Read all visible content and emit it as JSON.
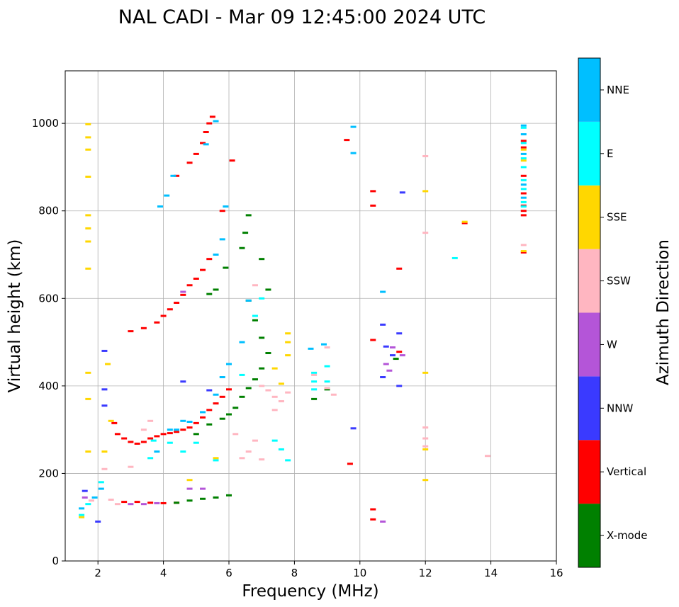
{
  "chart_data": {
    "type": "scatter",
    "title": "NAL CADI - Mar 09 12:45:00 2024 UTC",
    "xlabel": "Frequency (MHz)",
    "ylabel": "Virtual height (km)",
    "xlim": [
      1,
      16
    ],
    "ylim": [
      0,
      1120
    ],
    "xticks": [
      2,
      4,
      6,
      8,
      10,
      12,
      14,
      16
    ],
    "yticks": [
      0,
      200,
      400,
      600,
      800,
      1000
    ],
    "grid": true,
    "colorbar": {
      "label": "Azimuth Direction",
      "categories": [
        {
          "name": "X-mode",
          "color": "#008000"
        },
        {
          "name": "Vertical",
          "color": "#ff0000"
        },
        {
          "name": "NNW",
          "color": "#3a3aff"
        },
        {
          "name": "W",
          "color": "#b455d8"
        },
        {
          "name": "SSW",
          "color": "#ffb6c1"
        },
        {
          "name": "SSE",
          "color": "#ffd700"
        },
        {
          "name": "E",
          "color": "#00ffff"
        },
        {
          "name": "NNE",
          "color": "#00bfff"
        }
      ]
    },
    "series": [
      {
        "name": "Vertical",
        "points": [
          [
            2.5,
            315
          ],
          [
            2.6,
            290
          ],
          [
            2.8,
            280
          ],
          [
            3.0,
            272
          ],
          [
            3.2,
            268
          ],
          [
            3.4,
            272
          ],
          [
            3.6,
            280
          ],
          [
            3.8,
            285
          ],
          [
            4.0,
            290
          ],
          [
            4.2,
            292
          ],
          [
            4.4,
            295
          ],
          [
            4.6,
            300
          ],
          [
            4.8,
            305
          ],
          [
            5.0,
            315
          ],
          [
            5.2,
            328
          ],
          [
            5.4,
            345
          ],
          [
            5.6,
            360
          ],
          [
            5.8,
            375
          ],
          [
            6.0,
            392
          ],
          [
            2.8,
            135
          ],
          [
            3.2,
            135
          ],
          [
            3.6,
            133
          ],
          [
            4.0,
            132
          ],
          [
            4.4,
            133
          ],
          [
            3.0,
            525
          ],
          [
            3.4,
            532
          ],
          [
            3.8,
            545
          ],
          [
            4.0,
            560
          ],
          [
            4.2,
            575
          ],
          [
            4.4,
            590
          ],
          [
            4.6,
            608
          ],
          [
            4.8,
            630
          ],
          [
            5.0,
            645
          ],
          [
            5.2,
            665
          ],
          [
            5.4,
            690
          ],
          [
            4.4,
            880
          ],
          [
            4.8,
            910
          ],
          [
            5.0,
            930
          ],
          [
            5.2,
            955
          ],
          [
            5.3,
            980
          ],
          [
            5.4,
            1000
          ],
          [
            5.5,
            1015
          ],
          [
            5.8,
            800
          ],
          [
            6.1,
            915
          ],
          [
            9.6,
            962
          ],
          [
            9.7,
            222
          ],
          [
            10.4,
            845
          ],
          [
            10.4,
            812
          ],
          [
            10.4,
            505
          ],
          [
            10.4,
            118
          ],
          [
            10.4,
            95
          ],
          [
            11.2,
            668
          ],
          [
            11.2,
            478
          ],
          [
            15.0,
            960
          ],
          [
            15.0,
            945
          ],
          [
            15.0,
            880
          ],
          [
            15.0,
            840
          ],
          [
            15.0,
            812
          ],
          [
            15.0,
            800
          ],
          [
            15.0,
            790
          ],
          [
            15.0,
            705
          ],
          [
            13.2,
            772
          ]
        ]
      },
      {
        "name": "X-mode",
        "points": [
          [
            5.0,
            290
          ],
          [
            5.4,
            312
          ],
          [
            5.8,
            325
          ],
          [
            6.0,
            335
          ],
          [
            6.2,
            350
          ],
          [
            6.4,
            375
          ],
          [
            6.6,
            395
          ],
          [
            6.8,
            415
          ],
          [
            7.0,
            440
          ],
          [
            7.2,
            475
          ],
          [
            4.4,
            133
          ],
          [
            4.8,
            138
          ],
          [
            5.2,
            142
          ],
          [
            5.6,
            145
          ],
          [
            6.0,
            150
          ],
          [
            6.6,
            790
          ],
          [
            6.5,
            750
          ],
          [
            6.4,
            715
          ],
          [
            5.9,
            670
          ],
          [
            5.6,
            620
          ],
          [
            5.4,
            610
          ],
          [
            7.0,
            690
          ],
          [
            7.2,
            620
          ],
          [
            6.6,
            595
          ],
          [
            6.8,
            550
          ],
          [
            7.0,
            510
          ],
          [
            8.6,
            370
          ],
          [
            9.0,
            392
          ],
          [
            11.1,
            462
          ]
        ]
      },
      {
        "name": "NNE",
        "points": [
          [
            4.4,
            300
          ],
          [
            4.8,
            318
          ],
          [
            5.2,
            340
          ],
          [
            5.6,
            380
          ],
          [
            5.8,
            420
          ],
          [
            6.0,
            450
          ],
          [
            6.4,
            500
          ],
          [
            6.6,
            595
          ],
          [
            5.6,
            700
          ],
          [
            5.8,
            735
          ],
          [
            5.9,
            810
          ],
          [
            5.6,
            1005
          ],
          [
            5.3,
            952
          ],
          [
            4.3,
            880
          ],
          [
            4.1,
            835
          ],
          [
            3.9,
            810
          ],
          [
            3.8,
            250
          ],
          [
            4.2,
            300
          ],
          [
            4.6,
            320
          ],
          [
            8.5,
            485
          ],
          [
            8.9,
            495
          ],
          [
            9.8,
            992
          ],
          [
            9.8,
            932
          ],
          [
            10.7,
            615
          ],
          [
            15.0,
            995
          ],
          [
            15.0,
            975
          ],
          [
            15.0,
            930
          ],
          [
            15.0,
            860
          ],
          [
            15.0,
            830
          ],
          [
            1.5,
            120
          ],
          [
            1.9,
            145
          ],
          [
            2.1,
            165
          ]
        ]
      },
      {
        "name": "E",
        "points": [
          [
            3.6,
            235
          ],
          [
            3.7,
            275
          ],
          [
            4.2,
            270
          ],
          [
            4.6,
            250
          ],
          [
            5.0,
            270
          ],
          [
            5.6,
            230
          ],
          [
            7.4,
            275
          ],
          [
            7.6,
            255
          ],
          [
            7.8,
            230
          ],
          [
            8.6,
            430
          ],
          [
            8.6,
            410
          ],
          [
            8.6,
            392
          ],
          [
            9.0,
            445
          ],
          [
            9.0,
            410
          ],
          [
            12.9,
            692
          ],
          [
            15.0,
            990
          ],
          [
            15.0,
            955
          ],
          [
            15.0,
            920
          ],
          [
            15.0,
            900
          ],
          [
            15.0,
            870
          ],
          [
            15.0,
            850
          ],
          [
            15.0,
            820
          ],
          [
            15.0,
            810
          ],
          [
            6.4,
            425
          ],
          [
            6.8,
            560
          ],
          [
            7.0,
            600
          ],
          [
            1.5,
            105
          ],
          [
            1.7,
            130
          ],
          [
            2.1,
            180
          ]
        ]
      },
      {
        "name": "NNW",
        "points": [
          [
            2.2,
            480
          ],
          [
            2.2,
            392
          ],
          [
            2.2,
            355
          ],
          [
            4.6,
            410
          ],
          [
            5.4,
            390
          ],
          [
            9.8,
            303
          ],
          [
            10.7,
            540
          ],
          [
            10.8,
            490
          ],
          [
            11.0,
            470
          ],
          [
            11.2,
            520
          ],
          [
            11.2,
            400
          ],
          [
            10.7,
            420
          ],
          [
            11.3,
            842
          ],
          [
            1.6,
            160
          ],
          [
            2.0,
            90
          ]
        ]
      },
      {
        "name": "W",
        "points": [
          [
            3.0,
            130
          ],
          [
            3.4,
            130
          ],
          [
            3.8,
            132
          ],
          [
            4.8,
            165
          ],
          [
            5.2,
            165
          ],
          [
            4.6,
            615
          ],
          [
            10.8,
            450
          ],
          [
            10.9,
            435
          ],
          [
            11.0,
            488
          ],
          [
            10.7,
            90
          ],
          [
            11.3,
            470
          ],
          [
            1.6,
            145
          ]
        ]
      },
      {
        "name": "SSW",
        "points": [
          [
            2.2,
            210
          ],
          [
            2.4,
            140
          ],
          [
            2.6,
            130
          ],
          [
            3.0,
            215
          ],
          [
            3.4,
            300
          ],
          [
            3.6,
            320
          ],
          [
            6.2,
            290
          ],
          [
            6.4,
            235
          ],
          [
            6.6,
            250
          ],
          [
            6.8,
            275
          ],
          [
            7.0,
            400
          ],
          [
            7.2,
            390
          ],
          [
            7.4,
            375
          ],
          [
            7.6,
            365
          ],
          [
            7.8,
            385
          ],
          [
            7.4,
            345
          ],
          [
            7.0,
            232
          ],
          [
            8.6,
            425
          ],
          [
            9.0,
            395
          ],
          [
            9.2,
            380
          ],
          [
            9.0,
            488
          ],
          [
            12.0,
            925
          ],
          [
            12.0,
            750
          ],
          [
            12.0,
            305
          ],
          [
            12.0,
            280
          ],
          [
            12.0,
            262
          ],
          [
            13.9,
            240
          ],
          [
            15.0,
            722
          ],
          [
            6.8,
            630
          ],
          [
            1.8,
            138
          ]
        ]
      },
      {
        "name": "SSE",
        "points": [
          [
            2.3,
            450
          ],
          [
            2.4,
            320
          ],
          [
            2.2,
            250
          ],
          [
            4.8,
            185
          ],
          [
            5.6,
            235
          ],
          [
            7.4,
            440
          ],
          [
            7.6,
            405
          ],
          [
            7.8,
            470
          ],
          [
            7.8,
            500
          ],
          [
            7.8,
            520
          ],
          [
            12.0,
            845
          ],
          [
            12.0,
            430
          ],
          [
            12.0,
            255
          ],
          [
            12.0,
            185
          ],
          [
            13.2,
            775
          ],
          [
            15.0,
            940
          ],
          [
            15.0,
            915
          ],
          [
            15.0,
            708
          ],
          [
            1.7,
            998
          ],
          [
            1.7,
            968
          ],
          [
            1.7,
            940
          ],
          [
            1.7,
            878
          ],
          [
            1.7,
            790
          ],
          [
            1.7,
            760
          ],
          [
            1.7,
            730
          ],
          [
            1.7,
            668
          ],
          [
            1.7,
            430
          ],
          [
            1.7,
            370
          ],
          [
            1.7,
            250
          ],
          [
            1.5,
            100
          ]
        ]
      }
    ]
  }
}
